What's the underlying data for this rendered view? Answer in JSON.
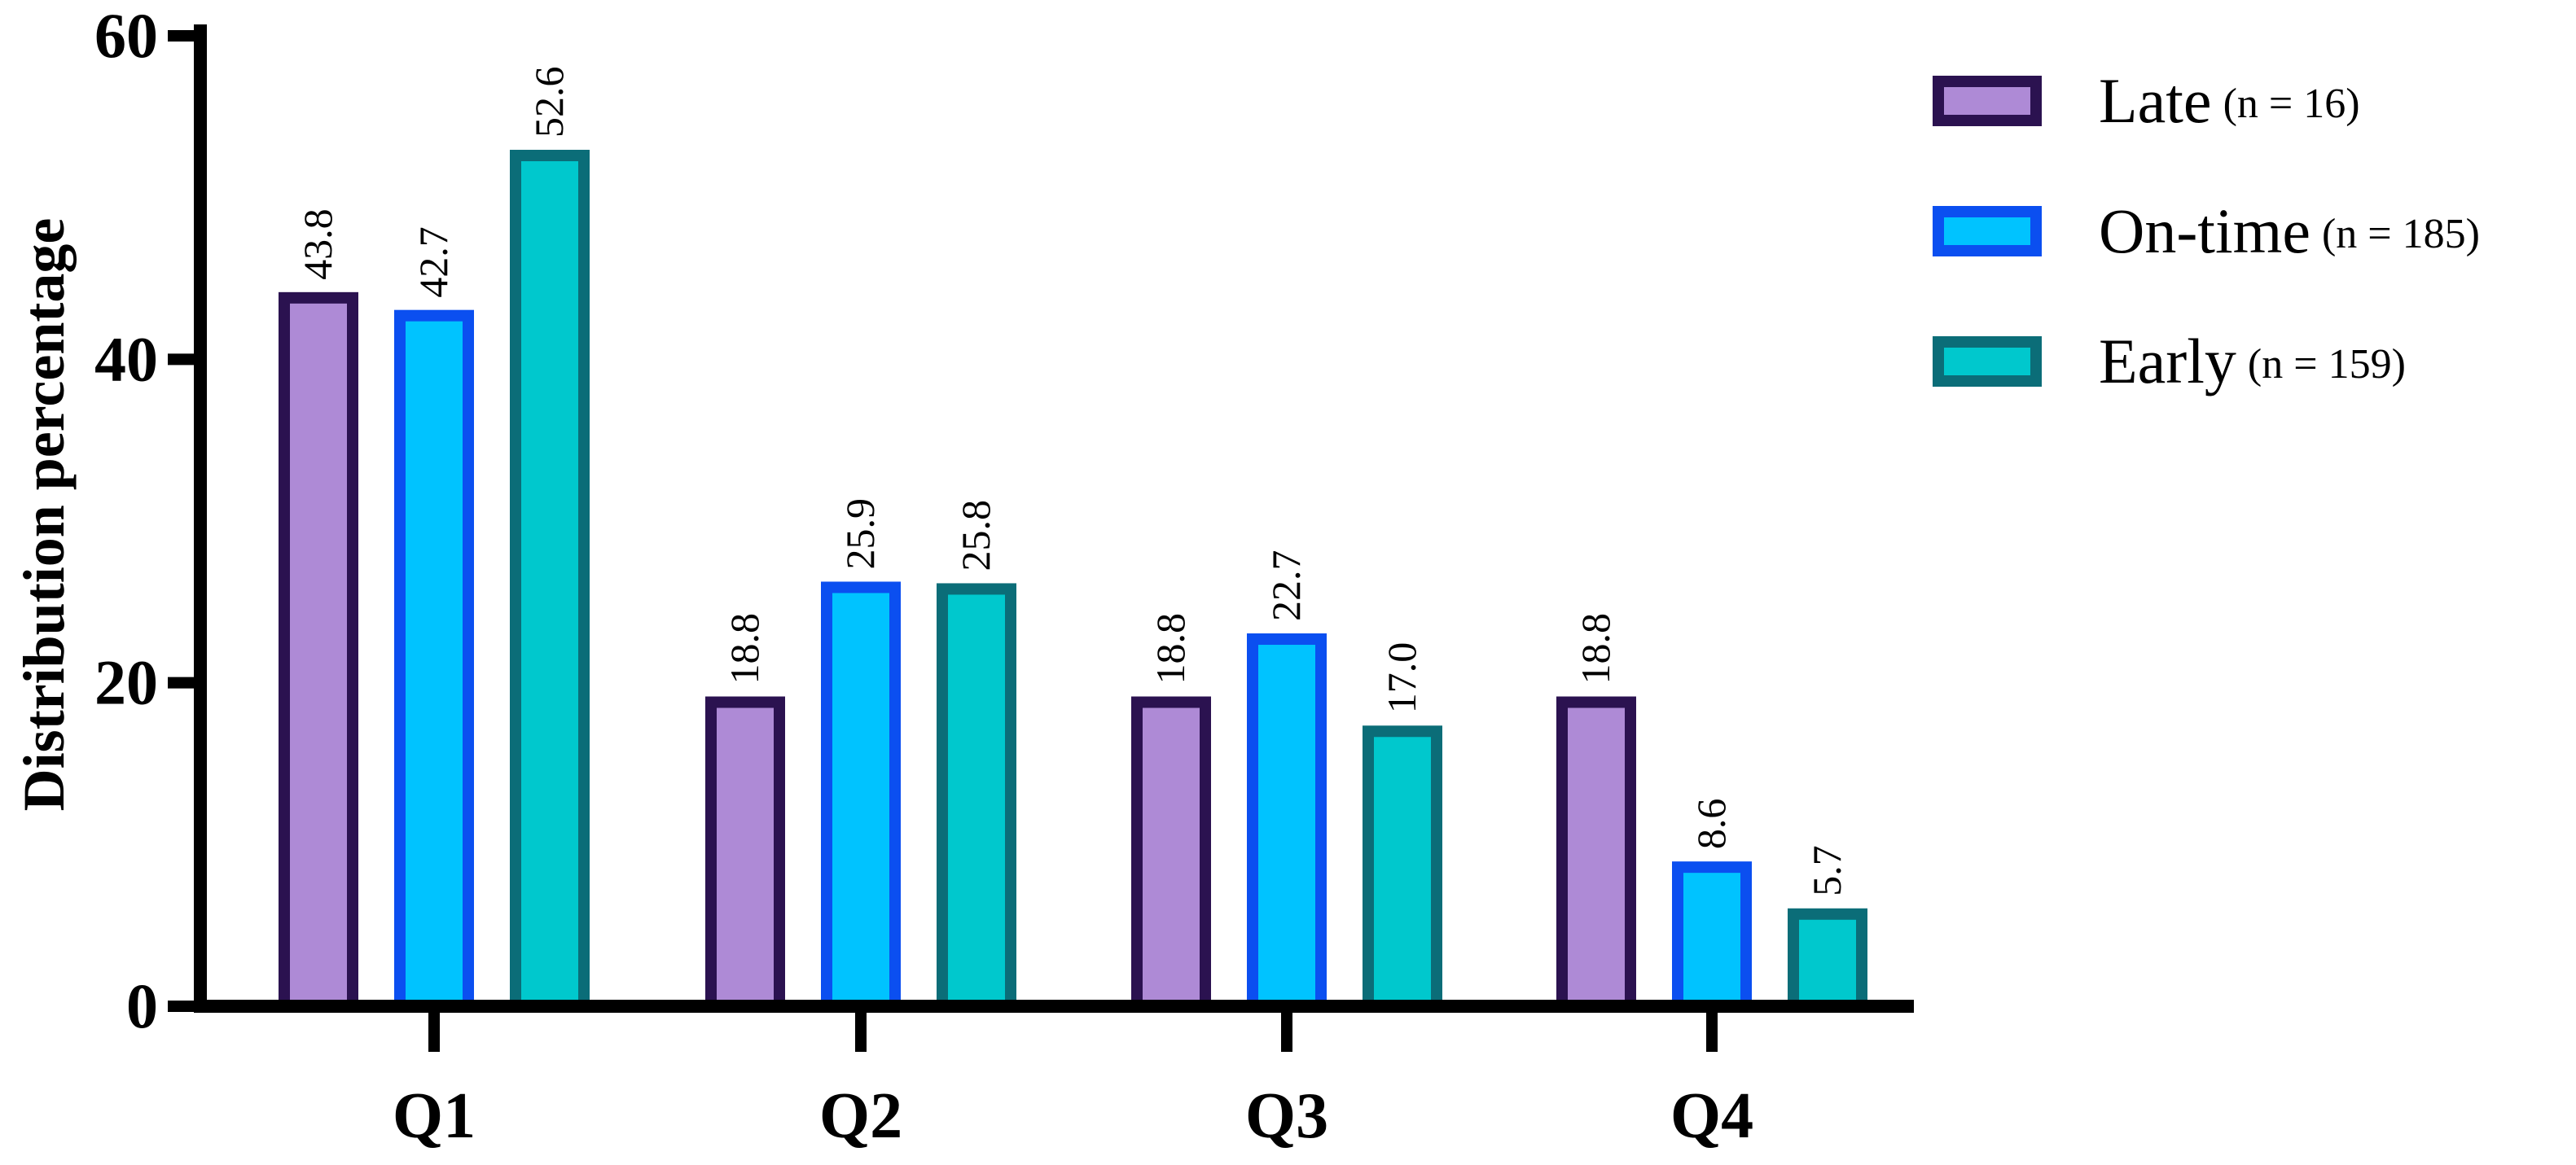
{
  "chart_data": {
    "type": "bar",
    "title": "",
    "xlabel": "",
    "ylabel": "Distribution percentage",
    "ylim": [
      0,
      60
    ],
    "yticks": [
      0,
      20,
      40,
      60
    ],
    "categories": [
      "Q1",
      "Q2",
      "Q3",
      "Q4"
    ],
    "series": [
      {
        "name": "Late",
        "n_label": "(n = 16)",
        "fill": "#ae8ad6",
        "stroke": "#2b1250",
        "values": [
          43.8,
          18.8,
          18.8,
          18.8
        ],
        "labels": [
          "43.8",
          "18.8",
          "18.8",
          "18.8"
        ]
      },
      {
        "name": "On-time",
        "n_label": "(n = 185)",
        "fill": "#00c3ff",
        "stroke": "#0b4ff0",
        "values": [
          42.7,
          25.9,
          22.7,
          8.6
        ],
        "labels": [
          "42.7",
          "25.9",
          "22.7",
          "8.6"
        ]
      },
      {
        "name": "Early",
        "n_label": "(n = 159)",
        "fill": "#00c8cd",
        "stroke": "#0b6d78",
        "values": [
          52.6,
          25.8,
          17.0,
          5.7
        ],
        "labels": [
          "52.6",
          "25.8",
          "17.0",
          "5.7"
        ]
      }
    ],
    "legend_position": "top-right",
    "grid": false
  }
}
